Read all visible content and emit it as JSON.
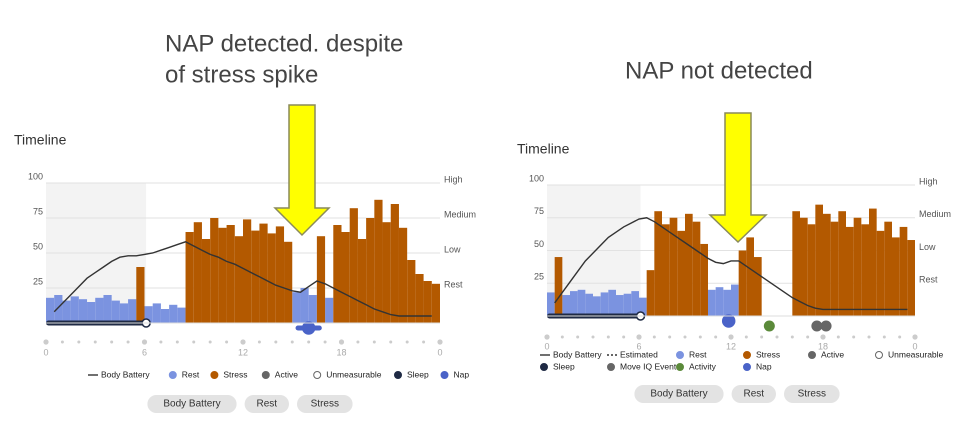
{
  "chart_data": [
    {
      "type": "bar",
      "annotation": [
        "NAP detected. despite",
        "of stress spike"
      ],
      "title": "Timeline",
      "x": [
        0,
        0.5,
        1,
        1.5,
        2,
        2.5,
        3,
        3.5,
        4,
        4.5,
        5,
        5.5,
        6,
        6.5,
        7,
        7.5,
        8,
        8.5,
        9,
        9.5,
        10,
        10.5,
        11,
        11.5,
        12,
        12.5,
        13,
        13.5,
        14,
        14.5,
        15,
        15.5,
        16,
        16.5,
        17,
        17.5,
        18,
        18.5,
        19,
        19.5,
        20,
        20.5,
        21,
        21.5,
        22,
        22.5,
        23,
        23.5
      ],
      "xlim": [
        0,
        24
      ],
      "xticks": [
        0,
        6,
        12,
        18,
        {
          "value": 24,
          "label": "0"
        }
      ],
      "ylim": [
        0,
        100
      ],
      "yticks": [
        25,
        50,
        75,
        100
      ],
      "y2lim": [
        0,
        100
      ],
      "y2ticks": [
        {
          "value": 25,
          "label": "Rest"
        },
        {
          "value": 50,
          "label": "Low"
        },
        {
          "value": 75,
          "label": "Medium"
        },
        {
          "value": 100,
          "label": "High"
        }
      ],
      "grid": true,
      "series": [
        {
          "name": "Body Battery",
          "style": "line",
          "color": "#333333",
          "values": [
            null,
            8,
            14,
            20,
            26,
            32,
            36,
            40,
            44,
            47,
            48,
            48,
            49,
            50,
            52,
            54,
            56,
            58,
            55,
            52,
            49,
            47,
            44,
            42,
            39,
            36,
            33,
            30,
            27,
            25,
            23,
            22,
            26,
            30,
            28,
            25,
            22,
            19,
            16,
            13,
            10,
            8,
            6,
            5,
            5,
            5,
            5,
            5
          ]
        },
        {
          "name": "Rest",
          "style": "dot",
          "color": "#7b93e0",
          "values": [
            18,
            20,
            16,
            19,
            17,
            15,
            18,
            20,
            16,
            14,
            17,
            null,
            12,
            14,
            10,
            13,
            11,
            null,
            null,
            null,
            null,
            null,
            null,
            null,
            null,
            null,
            null,
            null,
            null,
            null,
            22,
            25,
            20,
            null,
            18,
            null,
            null,
            null,
            null,
            null,
            null,
            null,
            null,
            null,
            null,
            null,
            null,
            null
          ]
        },
        {
          "name": "Stress",
          "style": "dot",
          "color": "#b35900",
          "values": [
            null,
            null,
            null,
            null,
            null,
            null,
            null,
            null,
            null,
            null,
            null,
            40,
            null,
            null,
            null,
            null,
            null,
            65,
            72,
            60,
            75,
            68,
            70,
            62,
            74,
            66,
            71,
            64,
            69,
            58,
            null,
            null,
            null,
            62,
            null,
            70,
            65,
            82,
            60,
            75,
            88,
            72,
            85,
            68,
            45,
            35,
            30,
            28
          ]
        },
        {
          "name": "Active",
          "style": "dot",
          "color": "#666666"
        },
        {
          "name": "Unmeasurable",
          "style": "ring",
          "color": "#666666"
        },
        {
          "name": "Sleep",
          "style": "dot",
          "color": "#1f2a44",
          "interval": [
            0,
            6.1
          ]
        },
        {
          "name": "Nap",
          "style": "dot",
          "color": "#4a63c8",
          "interval": [
            15.2,
            16.8
          ]
        }
      ],
      "buttons": [
        "Body Battery",
        "Rest",
        "Stress"
      ]
    },
    {
      "type": "bar",
      "annotation": [
        "NAP not detected"
      ],
      "title": "Timeline",
      "x": [
        0,
        0.5,
        1,
        1.5,
        2,
        2.5,
        3,
        3.5,
        4,
        4.5,
        5,
        5.5,
        6,
        6.5,
        7,
        7.5,
        8,
        8.5,
        9,
        9.5,
        10,
        10.5,
        11,
        11.5,
        12,
        12.5,
        13,
        13.5,
        14,
        14.5,
        15,
        15.5,
        16,
        16.5,
        17,
        17.5,
        18,
        18.5,
        19,
        19.5,
        20,
        20.5,
        21,
        21.5,
        22,
        22.5,
        23,
        23.5
      ],
      "xlim": [
        0,
        24
      ],
      "xticks": [
        0,
        6,
        12,
        18,
        {
          "value": 24,
          "label": "0"
        }
      ],
      "ylim": [
        0,
        100
      ],
      "yticks": [
        25,
        50,
        75,
        100
      ],
      "y2lim": [
        0,
        100
      ],
      "y2ticks": [
        {
          "value": 25,
          "label": "Rest"
        },
        {
          "value": 50,
          "label": "Low"
        },
        {
          "value": 75,
          "label": "Medium"
        },
        {
          "value": 100,
          "label": "High"
        }
      ],
      "grid": true,
      "series": [
        {
          "name": "Body Battery",
          "style": "line",
          "color": "#333333",
          "values": [
            null,
            10,
            18,
            26,
            34,
            42,
            48,
            54,
            60,
            64,
            68,
            71,
            74,
            75,
            72,
            68,
            64,
            60,
            56,
            52,
            48,
            44,
            41,
            40,
            42,
            42,
            38,
            34,
            30,
            26,
            22,
            18,
            14,
            11,
            8,
            6,
            5,
            5,
            5,
            5,
            5,
            5,
            5,
            5,
            5,
            5,
            5,
            5
          ]
        },
        {
          "name": "Estimated",
          "style": "dashed",
          "color": "#333333"
        },
        {
          "name": "Rest",
          "style": "dot",
          "color": "#7b93e0",
          "values": [
            18,
            null,
            16,
            19,
            20,
            17,
            15,
            18,
            20,
            16,
            17,
            19,
            14,
            null,
            null,
            null,
            null,
            null,
            null,
            null,
            null,
            20,
            22,
            20,
            24,
            null,
            null,
            null,
            null,
            null,
            null,
            null,
            null,
            null,
            null,
            null,
            null,
            null,
            null,
            null,
            null,
            null,
            null,
            null,
            null,
            null,
            null,
            null
          ]
        },
        {
          "name": "Stress",
          "style": "dot",
          "color": "#b35900",
          "values": [
            null,
            45,
            null,
            null,
            null,
            null,
            null,
            null,
            null,
            null,
            null,
            null,
            null,
            35,
            80,
            70,
            75,
            65,
            78,
            72,
            55,
            null,
            null,
            null,
            null,
            50,
            60,
            45,
            null,
            null,
            null,
            null,
            80,
            75,
            70,
            85,
            78,
            72,
            80,
            68,
            75,
            70,
            82,
            65,
            72,
            60,
            68,
            58
          ]
        },
        {
          "name": "Active",
          "style": "dot",
          "color": "#666666"
        },
        {
          "name": "Unmeasurable",
          "style": "ring",
          "color": "#666666"
        },
        {
          "name": "Sleep",
          "style": "dot",
          "color": "#1f2a44",
          "interval": [
            0,
            6.1
          ]
        },
        {
          "name": "Move IQ Event",
          "style": "dot",
          "color": "#666666",
          "points": [
            17.6,
            18.2
          ]
        },
        {
          "name": "Activity",
          "style": "dot",
          "color": "#5b8a3a",
          "points": [
            14.5
          ]
        },
        {
          "name": "Nap",
          "style": "dot",
          "color": "#4a63c8",
          "interval": [
            11.6,
            12.1
          ]
        }
      ],
      "buttons": [
        "Body Battery",
        "Rest",
        "Stress"
      ]
    }
  ]
}
